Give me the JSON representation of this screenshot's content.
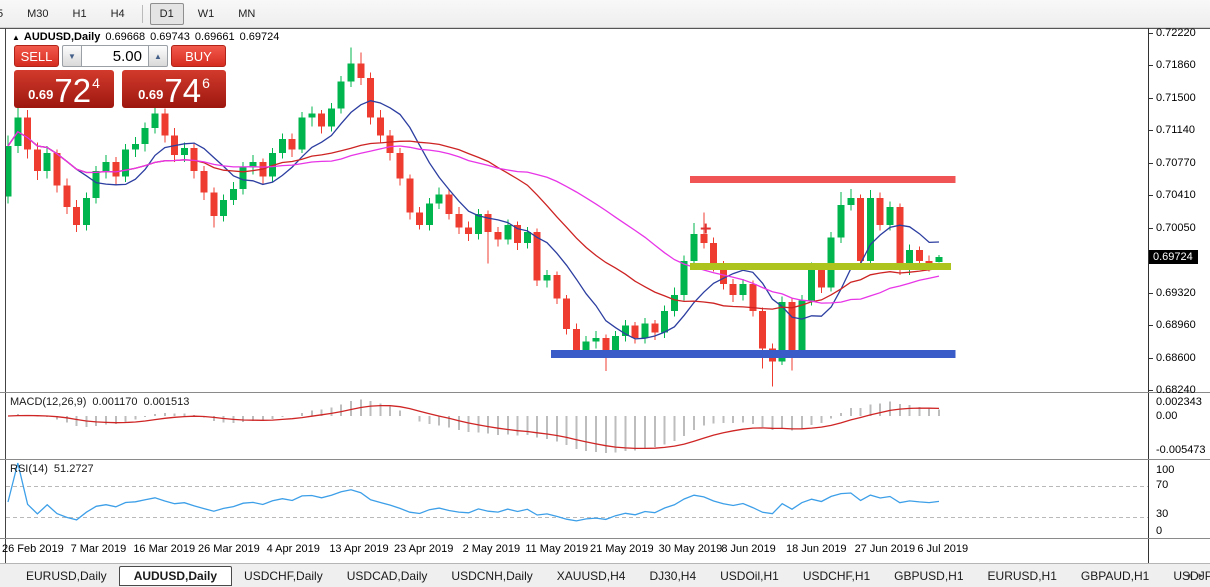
{
  "toolbar": {
    "timeframes": [
      "5",
      "M30",
      "H1",
      "H4",
      "D1",
      "W1",
      "MN"
    ],
    "active": "D1"
  },
  "chart": {
    "title": {
      "collapse_icon": "arrow-up",
      "symbol": "AUDUSD,Daily",
      "open": "0.69668",
      "high": "0.69743",
      "low": "0.69661",
      "close": "0.69724"
    },
    "trade_panel": {
      "sell_label": "SELL",
      "buy_label": "BUY",
      "volume": "5.00",
      "sell_price": {
        "prefix": "0.69",
        "big": "72",
        "sup": "4"
      },
      "buy_price": {
        "prefix": "0.69",
        "big": "74",
        "sup": "6"
      }
    }
  },
  "chart_data": {
    "type": "candlestick",
    "symbol": "AUDUSD",
    "timeframe": "Daily",
    "colors": {
      "up": "#00b44e",
      "down": "#ef3c30",
      "ma_fast": "#2c3ea0",
      "ma_mid": "#cd2323",
      "ma_slow": "#e735e7",
      "resistance": "#f05454",
      "pivot": "#aec41e",
      "support": "#3a5cc8",
      "macd_histogram": "#bdbdbd",
      "macd_signal": "#cf2525",
      "rsi_line": "#3d9fe8",
      "rsi_levels": "#b9b9b9"
    },
    "candles": [
      [
        0.704,
        0.7108,
        0.7032,
        0.7096
      ],
      [
        0.7096,
        0.714,
        0.7088,
        0.7128
      ],
      [
        0.7128,
        0.7136,
        0.7082,
        0.7092
      ],
      [
        0.7092,
        0.71,
        0.7058,
        0.7068
      ],
      [
        0.7068,
        0.7096,
        0.706,
        0.7088
      ],
      [
        0.7088,
        0.7092,
        0.7044,
        0.7052
      ],
      [
        0.7052,
        0.706,
        0.702,
        0.7028
      ],
      [
        0.7028,
        0.7036,
        0.7,
        0.7008
      ],
      [
        0.7008,
        0.7044,
        0.7002,
        0.7038
      ],
      [
        0.7038,
        0.7074,
        0.7032,
        0.7068
      ],
      [
        0.7068,
        0.7086,
        0.706,
        0.7078
      ],
      [
        0.7078,
        0.7084,
        0.7052,
        0.7062
      ],
      [
        0.7062,
        0.7098,
        0.7056,
        0.7092
      ],
      [
        0.7092,
        0.7106,
        0.7084,
        0.7098
      ],
      [
        0.7098,
        0.7122,
        0.709,
        0.7116
      ],
      [
        0.7116,
        0.7145,
        0.711,
        0.7132
      ],
      [
        0.7132,
        0.7138,
        0.71,
        0.7108
      ],
      [
        0.7108,
        0.7116,
        0.7078,
        0.7086
      ],
      [
        0.7086,
        0.71,
        0.7078,
        0.7094
      ],
      [
        0.7094,
        0.7098,
        0.706,
        0.7068
      ],
      [
        0.7068,
        0.7074,
        0.7036,
        0.7044
      ],
      [
        0.7044,
        0.705,
        0.7005,
        0.7018
      ],
      [
        0.7018,
        0.7042,
        0.7012,
        0.7036
      ],
      [
        0.7036,
        0.7056,
        0.703,
        0.7048
      ],
      [
        0.7048,
        0.7078,
        0.7042,
        0.7072
      ],
      [
        0.7072,
        0.7086,
        0.7064,
        0.7078
      ],
      [
        0.7078,
        0.7082,
        0.7054,
        0.7062
      ],
      [
        0.7062,
        0.7094,
        0.7056,
        0.7088
      ],
      [
        0.7088,
        0.711,
        0.7082,
        0.7104
      ],
      [
        0.7104,
        0.711,
        0.7084,
        0.7092
      ],
      [
        0.7092,
        0.7134,
        0.7088,
        0.7128
      ],
      [
        0.7128,
        0.714,
        0.7118,
        0.7132
      ],
      [
        0.7132,
        0.7136,
        0.711,
        0.7118
      ],
      [
        0.7118,
        0.7144,
        0.7112,
        0.7138
      ],
      [
        0.7138,
        0.7174,
        0.7132,
        0.7168
      ],
      [
        0.7168,
        0.7206,
        0.7162,
        0.7188
      ],
      [
        0.7188,
        0.72,
        0.7164,
        0.7172
      ],
      [
        0.7172,
        0.7178,
        0.712,
        0.7128
      ],
      [
        0.7128,
        0.7136,
        0.71,
        0.7108
      ],
      [
        0.7108,
        0.7114,
        0.708,
        0.7088
      ],
      [
        0.7088,
        0.7094,
        0.7052,
        0.706
      ],
      [
        0.706,
        0.7064,
        0.7014,
        0.7022
      ],
      [
        0.7022,
        0.7028,
        0.7003,
        0.7008
      ],
      [
        0.7008,
        0.7038,
        0.7002,
        0.7032
      ],
      [
        0.7032,
        0.705,
        0.7026,
        0.7042
      ],
      [
        0.7042,
        0.7048,
        0.7014,
        0.702
      ],
      [
        0.702,
        0.7028,
        0.6998,
        0.7005
      ],
      [
        0.7005,
        0.7012,
        0.699,
        0.6998
      ],
      [
        0.6998,
        0.7026,
        0.6992,
        0.702
      ],
      [
        0.702,
        0.7024,
        0.6965,
        0.7
      ],
      [
        0.7,
        0.7006,
        0.6984,
        0.6992
      ],
      [
        0.6992,
        0.7014,
        0.6986,
        0.7008
      ],
      [
        0.7008,
        0.7012,
        0.698,
        0.6988
      ],
      [
        0.6988,
        0.7006,
        0.6982,
        0.7
      ],
      [
        0.7,
        0.7004,
        0.694,
        0.6946
      ],
      [
        0.6946,
        0.6958,
        0.6938,
        0.6952
      ],
      [
        0.6952,
        0.6956,
        0.692,
        0.6926
      ],
      [
        0.6926,
        0.693,
        0.6886,
        0.6892
      ],
      [
        0.6892,
        0.6898,
        0.6862,
        0.6868
      ],
      [
        0.6868,
        0.6884,
        0.686,
        0.6878
      ],
      [
        0.6878,
        0.689,
        0.687,
        0.6882
      ],
      [
        0.6882,
        0.6886,
        0.6845,
        0.6866
      ],
      [
        0.6866,
        0.689,
        0.686,
        0.6884
      ],
      [
        0.6884,
        0.6902,
        0.6878,
        0.6896
      ],
      [
        0.6896,
        0.69,
        0.6876,
        0.6882
      ],
      [
        0.6882,
        0.6904,
        0.6876,
        0.6898
      ],
      [
        0.6898,
        0.6902,
        0.688,
        0.6888
      ],
      [
        0.6888,
        0.6918,
        0.6882,
        0.6912
      ],
      [
        0.6912,
        0.6938,
        0.6906,
        0.693
      ],
      [
        0.693,
        0.6974,
        0.6924,
        0.6968
      ],
      [
        0.6968,
        0.701,
        0.6962,
        0.6998
      ],
      [
        0.6998,
        0.7022,
        0.6982,
        0.6988
      ],
      [
        0.6988,
        0.6994,
        0.6956,
        0.6962
      ],
      [
        0.6962,
        0.6968,
        0.6936,
        0.6942
      ],
      [
        0.6942,
        0.6948,
        0.6922,
        0.693
      ],
      [
        0.693,
        0.6948,
        0.6924,
        0.6942
      ],
      [
        0.6942,
        0.6946,
        0.6906,
        0.6912
      ],
      [
        0.6912,
        0.6916,
        0.6848,
        0.687
      ],
      [
        0.687,
        0.6876,
        0.6828,
        0.6856
      ],
      [
        0.6856,
        0.6928,
        0.6852,
        0.6922
      ],
      [
        0.6922,
        0.6926,
        0.6846,
        0.6868
      ],
      [
        0.6868,
        0.693,
        0.6862,
        0.6924
      ],
      [
        0.6924,
        0.6966,
        0.6918,
        0.696
      ],
      [
        0.696,
        0.6964,
        0.6932,
        0.6938
      ],
      [
        0.6938,
        0.7,
        0.6934,
        0.6994
      ],
      [
        0.6994,
        0.7045,
        0.6988,
        0.703
      ],
      [
        0.703,
        0.7048,
        0.7024,
        0.7038
      ],
      [
        0.7038,
        0.7042,
        0.6962,
        0.6968
      ],
      [
        0.6968,
        0.7047,
        0.6962,
        0.7038
      ],
      [
        0.7038,
        0.7044,
        0.7002,
        0.7008
      ],
      [
        0.7008,
        0.7034,
        0.7002,
        0.7028
      ],
      [
        0.7028,
        0.7032,
        0.6952,
        0.6958
      ],
      [
        0.6958,
        0.6986,
        0.6952,
        0.698
      ],
      [
        0.698,
        0.6984,
        0.696,
        0.6968
      ],
      [
        0.6968,
        0.6974,
        0.6956,
        0.696
      ],
      [
        0.69668,
        0.69743,
        0.69661,
        0.69724
      ]
    ],
    "moving_averages": [
      {
        "name": "fast",
        "period": 8,
        "color_key": "ma_fast"
      },
      {
        "name": "mid",
        "period": 20,
        "color_key": "ma_mid"
      },
      {
        "name": "slow",
        "period": 32,
        "color_key": "ma_slow"
      }
    ],
    "hlines": [
      {
        "name": "resistance",
        "price": 0.70585,
        "color_key": "resistance",
        "from_bar": 70.0,
        "to_bar": 96.3,
        "thickness": 7
      },
      {
        "name": "pivot",
        "price": 0.69615,
        "color_key": "pivot",
        "from_bar": 70.0,
        "to_bar": 95.8,
        "thickness": 7
      },
      {
        "name": "support",
        "price": 0.6864,
        "color_key": "support",
        "from_bar": 55.8,
        "to_bar": 96.3,
        "thickness": 8
      }
    ],
    "marker": {
      "type": "plus",
      "bar": 71.2,
      "price": 0.7004,
      "color": "#e03030"
    },
    "price_axis": {
      "ticks": [
        "0.72220",
        "0.71860",
        "0.71500",
        "0.71140",
        "0.70770",
        "0.70410",
        "0.70050",
        "0.69320",
        "0.68960",
        "0.68600",
        "0.68240"
      ],
      "current_label": "0.69724",
      "current_value": 0.69724
    },
    "date_labels": [
      {
        "bar": 0,
        "label": "26 Feb 2019"
      },
      {
        "bar": 7,
        "label": "7 Mar 2019"
      },
      {
        "bar": 13.4,
        "label": "16 Mar 2019"
      },
      {
        "bar": 20,
        "label": "26 Mar 2019"
      },
      {
        "bar": 27,
        "label": "4 Apr 2019"
      },
      {
        "bar": 33.4,
        "label": "13 Apr 2019"
      },
      {
        "bar": 40,
        "label": "23 Apr 2019"
      },
      {
        "bar": 47,
        "label": "2 May 2019"
      },
      {
        "bar": 53.4,
        "label": "11 May 2019"
      },
      {
        "bar": 60,
        "label": "21 May 2019"
      },
      {
        "bar": 67,
        "label": "30 May 2019"
      },
      {
        "bar": 73.4,
        "label": "8 Jun 2019"
      },
      {
        "bar": 80,
        "label": "18 Jun 2019"
      },
      {
        "bar": 87,
        "label": "27 Jun 2019"
      },
      {
        "bar": 93.4,
        "label": "6 Jul 2019"
      }
    ],
    "macd": {
      "name": "MACD(12,26,9)",
      "fast": 12,
      "slow": 26,
      "signal": 9,
      "value_main": "0.001170",
      "value_signal": "0.001513",
      "axis": [
        {
          "v": 0.002343,
          "label": "0.002343"
        },
        {
          "v": 0,
          "label": "0.00"
        },
        {
          "v": -0.005473,
          "label": "-0.005473"
        }
      ]
    },
    "rsi": {
      "name": "RSI(14)",
      "period": 14,
      "value": "51.2727",
      "levels": [
        70,
        30
      ],
      "axis": [
        {
          "v": 100,
          "label": "100"
        },
        {
          "v": 70,
          "label": "70"
        },
        {
          "v": 30,
          "label": "30"
        },
        {
          "v": 0,
          "label": "0"
        }
      ]
    }
  },
  "tabs": {
    "items": [
      "EURUSD,Daily",
      "AUDUSD,Daily",
      "USDCHF,Daily",
      "USDCAD,Daily",
      "USDCNH,Daily",
      "XAUUSD,H4",
      "DJ30,H4",
      "USDOil,H1",
      "USDCHF,H1",
      "GBPUSD,H1",
      "EURUSD,H1",
      "GBPAUD,H1",
      "USDJP"
    ],
    "active": "AUDUSD,Daily",
    "scroll_left": "◂",
    "scroll_right": "▸"
  }
}
